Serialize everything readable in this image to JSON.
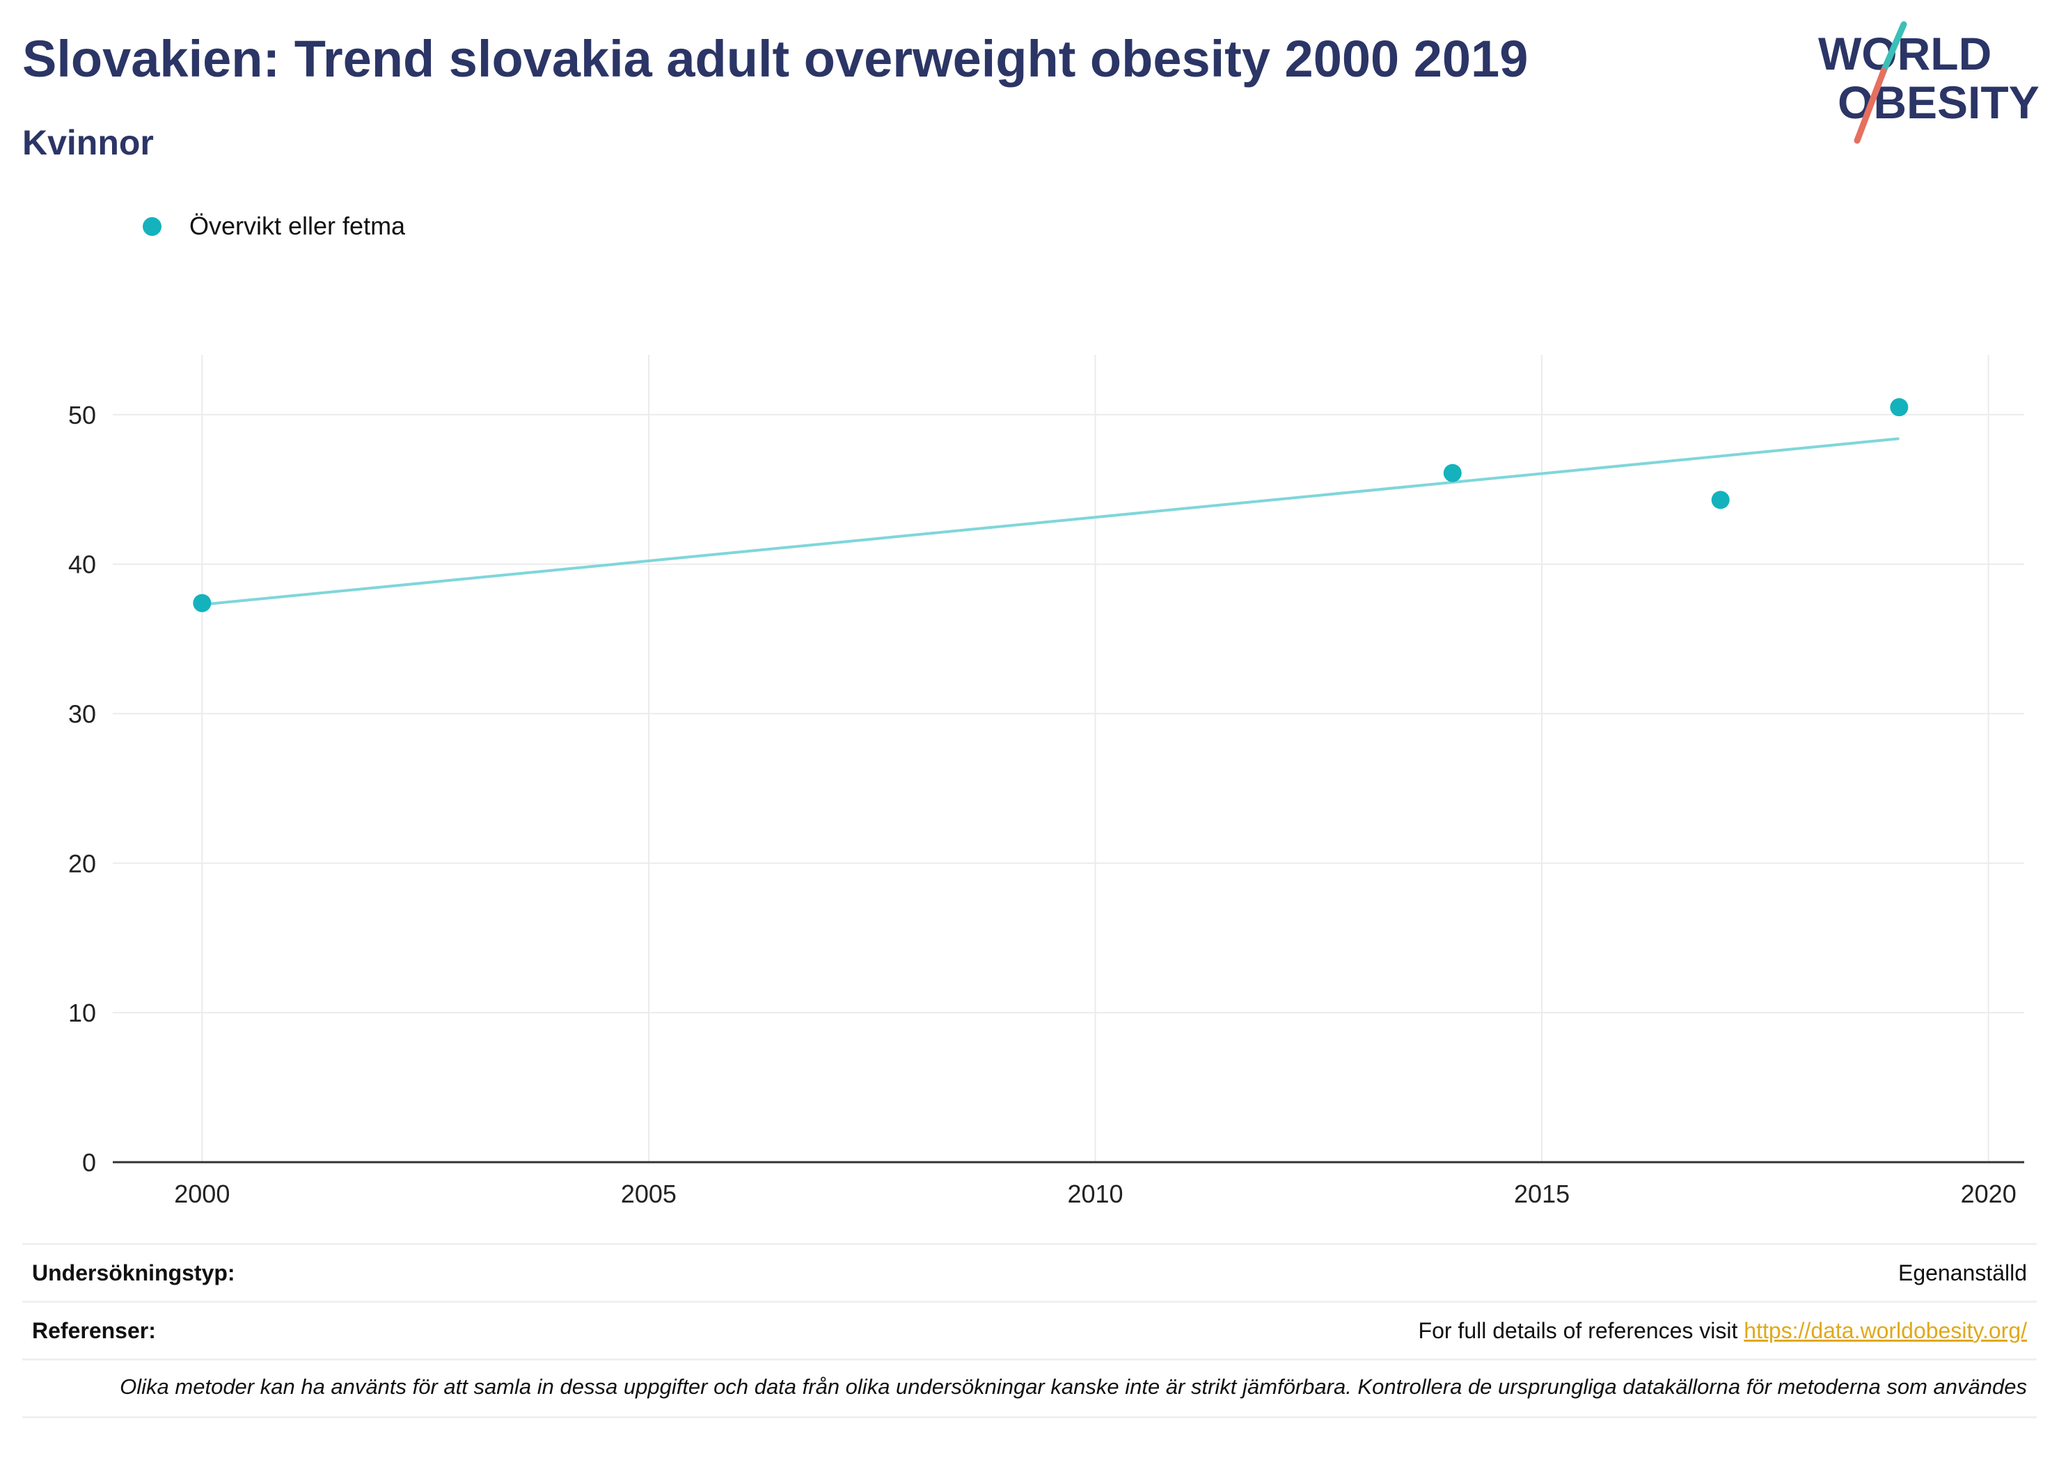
{
  "header": {
    "title": "Slovakien: Trend slovakia adult overweight obesity 2000 2019",
    "subtitle": "Kvinnor"
  },
  "logo": {
    "line1": "WORLD",
    "line2": "OBESITY",
    "colors": {
      "text": "#2b3566",
      "slash_top": "#3bbfb8",
      "slash_bottom": "#e5705f"
    }
  },
  "colors": {
    "series": "#14b2bd",
    "trend": "#7fd6da",
    "grid": "#ebebeb",
    "axis": "#333333"
  },
  "chart_data": {
    "type": "scatter",
    "title": "",
    "xlabel": "",
    "ylabel": "",
    "xlim": [
      1999,
      2020.4
    ],
    "ylim": [
      0,
      54
    ],
    "x_ticks": [
      2000,
      2005,
      2010,
      2015,
      2020
    ],
    "y_ticks": [
      0,
      10,
      20,
      30,
      40,
      50
    ],
    "grid": true,
    "legend_placement": "top-left",
    "series": [
      {
        "name": "Övervikt eller fetma",
        "x": [
          2000,
          2014,
          2017,
          2019
        ],
        "y": [
          37.4,
          46.1,
          44.3,
          50.5
        ]
      }
    ],
    "trendline": {
      "x": [
        2000,
        2019
      ],
      "y": [
        37.3,
        48.4
      ]
    }
  },
  "footer": {
    "survey_label": "Undersökningstyp:",
    "survey_value": "Egenanställd",
    "refs_label": "Referenser:",
    "refs_text": "For full details of references visit",
    "refs_link": "https://data.worldobesity.org/",
    "note": "Olika metoder kan ha använts för att samla in dessa uppgifter och data från olika undersökningar kanske inte är strikt jämförbara. Kontrollera de ursprungliga datakällorna för metoderna som användes"
  }
}
